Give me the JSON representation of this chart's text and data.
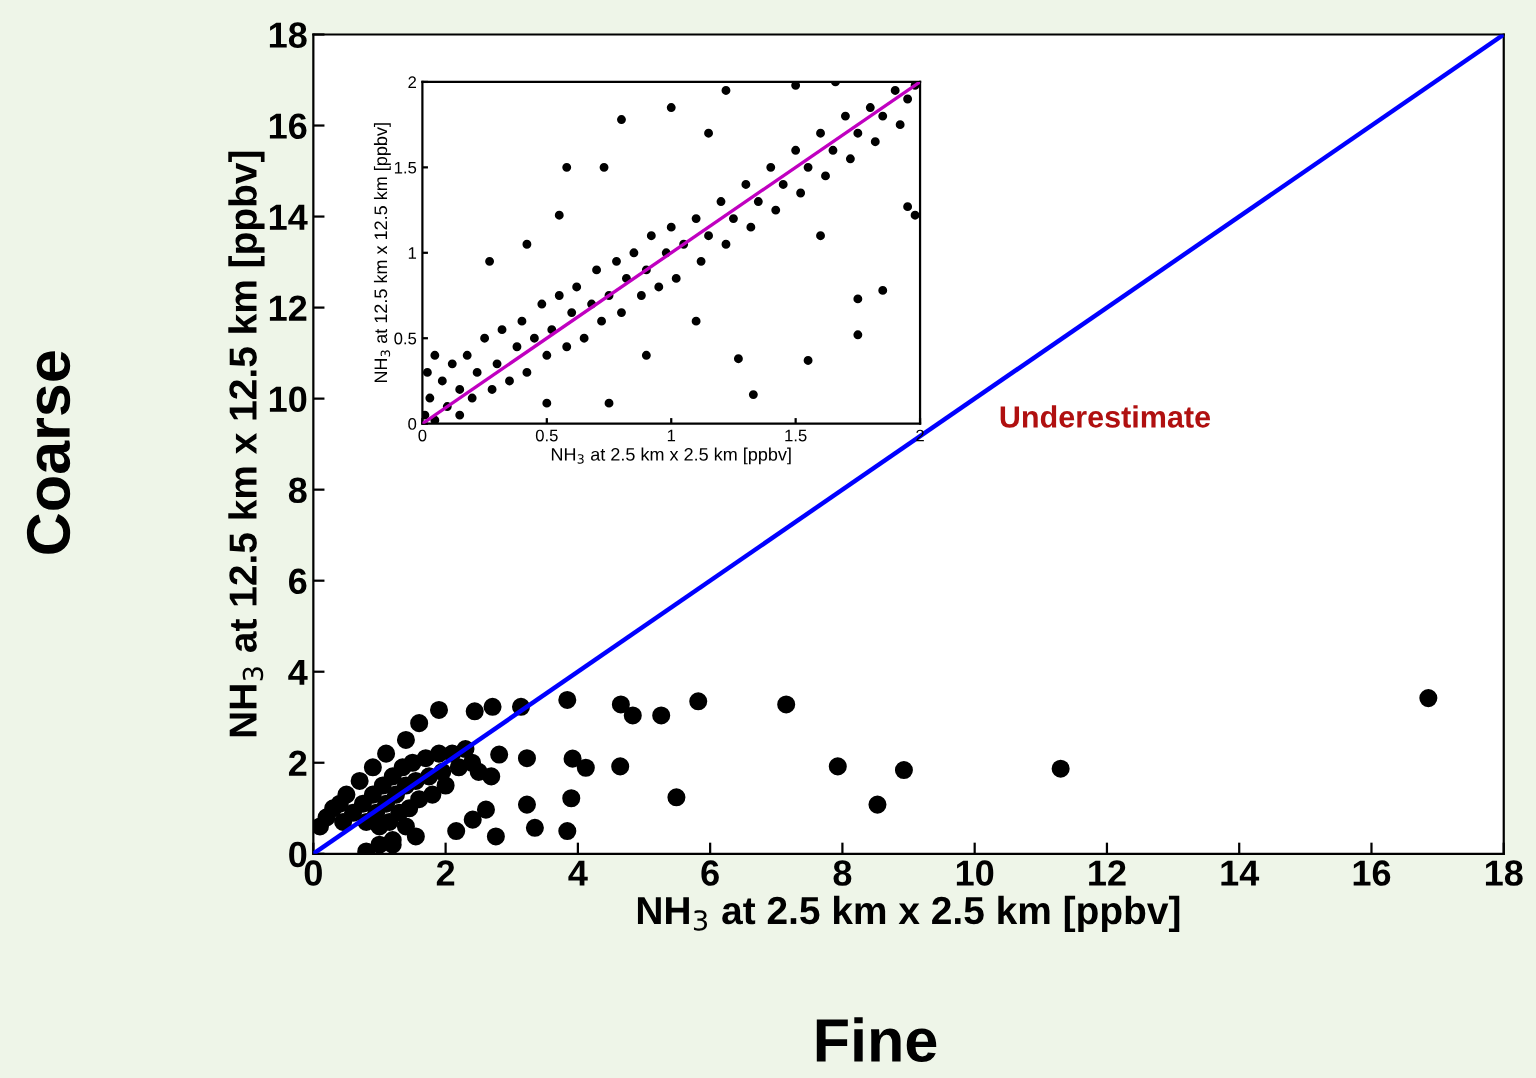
{
  "chart_data": [
    {
      "type": "scatter",
      "xlabel": "NH$_{3}$ at 2.5 km x 2.5 km [ppbv]",
      "ylabel": "NH$_{3}$ at 12.5 km x 12.5 km [ppbv]",
      "xlim": [
        0,
        18
      ],
      "ylim": [
        0,
        18
      ],
      "xticks": [
        0,
        2,
        4,
        6,
        8,
        10,
        12,
        14,
        16,
        18
      ],
      "yticks": [
        0,
        2,
        4,
        6,
        8,
        10,
        12,
        14,
        16,
        18
      ],
      "grid": false,
      "legend": false,
      "marker": "circle",
      "annotations": [
        "Underestimate",
        "Coarse",
        "Fine"
      ],
      "series": [
        {
          "color": "#000000",
          "x": [
            0.45,
            0.6,
            0.75,
            0.8,
            0.9,
            0.95,
            1.0,
            1.05,
            1.1,
            1.15,
            1.2,
            1.25,
            1.3,
            1.35,
            1.4,
            1.45,
            1.5,
            1.55,
            1.6,
            1.7,
            1.75,
            1.8,
            1.9,
            1.95,
            2.0,
            2.1,
            2.2,
            2.3,
            2.4,
            2.5,
            0.3,
            0.5,
            0.7,
            0.9,
            1.1,
            0.2,
            1.0,
            0.8,
            1.4,
            1.2,
            0.1,
            0.4,
            3.84,
            4.65,
            4.83,
            5.26,
            5.82,
            7.15,
            7.93,
            8.93,
            8.53,
            5.49,
            4.64,
            4.12,
            3.92,
            3.9,
            3.84,
            3.35,
            3.23,
            3.23,
            3.14,
            2.71,
            2.44,
            1.9,
            1.4,
            1.6,
            2.76,
            2.16,
            2.41,
            2.61,
            1.55,
            1.2,
            2.81,
            2.69,
            11.3,
            16.86
          ],
          "values": [
            0.7,
            0.9,
            1.1,
            0.7,
            1.3,
            0.9,
            0.6,
            1.5,
            1.1,
            0.7,
            1.7,
            1.3,
            0.9,
            1.9,
            1.5,
            1.0,
            2.0,
            1.6,
            1.2,
            2.1,
            1.7,
            1.3,
            2.2,
            1.8,
            1.5,
            2.2,
            1.9,
            2.3,
            2.0,
            1.8,
            1.0,
            1.3,
            1.6,
            1.9,
            2.2,
            0.8,
            0.2,
            0.05,
            0.6,
            0.3,
            0.6,
            1.1,
            3.38,
            3.28,
            3.04,
            3.04,
            3.35,
            3.28,
            1.92,
            1.84,
            1.08,
            1.24,
            1.92,
            1.89,
            2.09,
            1.22,
            0.5,
            0.57,
            1.08,
            2.1,
            3.23,
            3.23,
            3.13,
            3.16,
            2.5,
            2.87,
            0.38,
            0.5,
            0.75,
            0.97,
            0.38,
            0.2,
            2.18,
            1.7,
            1.87,
            3.42
          ]
        },
        {
          "type": "line",
          "color": "#0000ff",
          "marker": "none",
          "x": [
            0,
            18
          ],
          "values": [
            0,
            18
          ]
        }
      ]
    },
    {
      "type": "scatter",
      "xlabel": "NH$_{3}$ at 2.5 km x 2.5 km [ppbv]",
      "ylabel": "NH$_{3}$ at 12.5 km x 12.5 km [ppbv]",
      "xlim": [
        0,
        2
      ],
      "ylim": [
        0,
        2
      ],
      "xticks": [
        0,
        0.5,
        1,
        1.5,
        2
      ],
      "yticks": [
        0,
        0.5,
        1,
        1.5,
        2
      ],
      "grid": false,
      "legend": false,
      "marker": "circle",
      "series": [
        {
          "color": "#000000",
          "x": [
            0.01,
            0.02,
            0.03,
            0.05,
            0.05,
            0.08,
            0.1,
            0.12,
            0.15,
            0.15,
            0.18,
            0.2,
            0.22,
            0.25,
            0.28,
            0.3,
            0.32,
            0.35,
            0.38,
            0.4,
            0.42,
            0.45,
            0.48,
            0.5,
            0.52,
            0.55,
            0.58,
            0.6,
            0.62,
            0.65,
            0.68,
            0.7,
            0.72,
            0.75,
            0.78,
            0.8,
            0.82,
            0.85,
            0.88,
            0.9,
            0.92,
            0.95,
            0.98,
            1.0,
            1.02,
            1.05,
            1.1,
            1.12,
            1.15,
            1.2,
            1.22,
            1.25,
            1.3,
            1.32,
            1.35,
            1.4,
            1.42,
            1.45,
            1.5,
            1.52,
            1.55,
            1.6,
            1.62,
            1.65,
            1.7,
            1.72,
            1.75,
            1.8,
            1.82,
            1.85,
            1.9,
            1.92,
            1.95,
            1.98,
            0.42,
            0.27,
            0.58,
            0.8,
            1.0,
            1.22,
            1.5,
            1.66,
            0.73,
            0.55,
            1.15,
            0.75,
            1.33,
            1.27,
            1.55,
            1.75,
            1.75,
            1.85,
            1.95,
            1.98,
            1.6,
            0.9,
            1.1,
            0.5
          ],
          "values": [
            0.05,
            0.3,
            0.15,
            0.4,
            0.02,
            0.25,
            0.1,
            0.35,
            0.05,
            0.2,
            0.4,
            0.15,
            0.3,
            0.5,
            0.2,
            0.35,
            0.55,
            0.25,
            0.45,
            0.6,
            0.3,
            0.5,
            0.7,
            0.4,
            0.55,
            0.75,
            0.45,
            0.65,
            0.8,
            0.5,
            0.7,
            0.9,
            0.6,
            0.75,
            0.95,
            0.65,
            0.85,
            1.0,
            0.75,
            0.9,
            1.1,
            0.8,
            1.0,
            1.15,
            0.85,
            1.05,
            1.2,
            0.95,
            1.1,
            1.3,
            1.05,
            1.2,
            1.4,
            1.15,
            1.3,
            1.5,
            1.25,
            1.4,
            1.6,
            1.35,
            1.5,
            1.7,
            1.45,
            1.6,
            1.8,
            1.55,
            1.7,
            1.85,
            1.65,
            1.8,
            1.95,
            1.75,
            1.9,
            1.98,
            1.05,
            0.95,
            1.5,
            1.78,
            1.85,
            1.95,
            1.98,
            2.0,
            1.5,
            1.22,
            1.7,
            0.12,
            0.17,
            0.38,
            0.37,
            0.52,
            0.73,
            0.78,
            1.27,
            1.22,
            1.1,
            0.4,
            0.6,
            0.12
          ]
        },
        {
          "type": "line",
          "color": "#c000c0",
          "marker": "none",
          "x": [
            0,
            2
          ],
          "values": [
            0,
            2
          ]
        }
      ]
    }
  ]
}
